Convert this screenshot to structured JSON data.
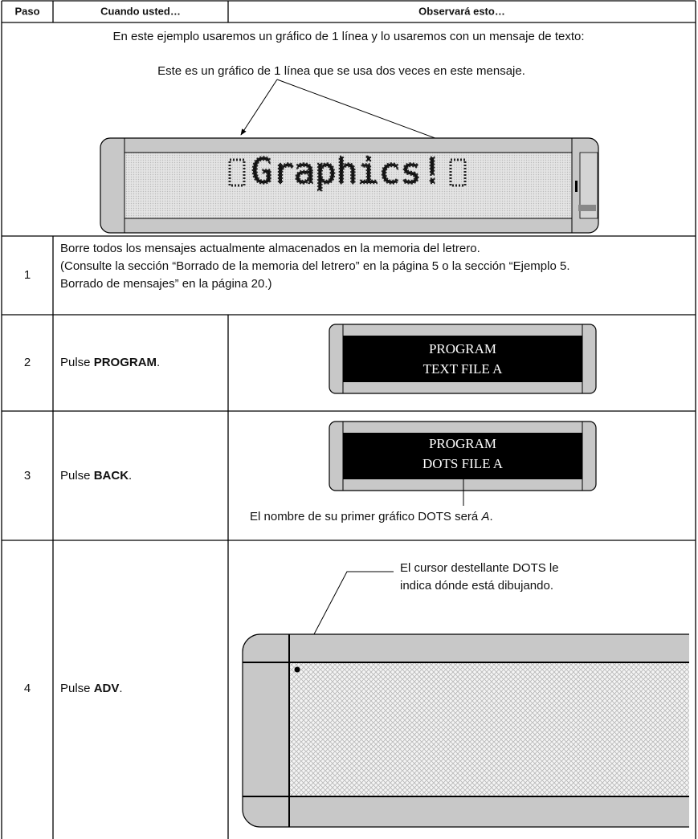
{
  "header_row": [
    "Paso",
    "Cuando usted…",
    "Observará esto…"
  ],
  "intro": {
    "text": "En este ejemplo usaremos un gráfico de 1 línea y lo usaremos con un mensaje de texto:",
    "callout": "Este es un gráfico de 1 línea que se usa dos veces en este mensaje.",
    "sign_text": "Graphics!"
  },
  "steps": [
    {
      "step": "1",
      "instruction_lines": [
        "Borre todos los mensajes actualmente almacenados en la memoria del letrero.",
        "(Consulte la sección “Borrado de la memoria del letrero” en la página 5 o la sección “Ejemplo 5.",
        "Borrado de mensajes” en la página 20.)"
      ]
    },
    {
      "step": "2",
      "action": [
        "Pulse ",
        "PROGRAM",
        "."
      ],
      "display": [
        "PROGRAM",
        "TEXT FILE A"
      ]
    },
    {
      "step": "3",
      "action": [
        "Pulse ",
        "BACK",
        "."
      ],
      "display": [
        "PROGRAM",
        "DOTS FILE A"
      ],
      "note": [
        "El nombre de su primer gráfico DOTS será ",
        "A",
        "."
      ]
    },
    {
      "step": "4",
      "action": [
        "Pulse ",
        "ADV",
        "."
      ],
      "callout": [
        "El cursor destellante DOTS le",
        "indica dónde está dibujando."
      ]
    }
  ]
}
